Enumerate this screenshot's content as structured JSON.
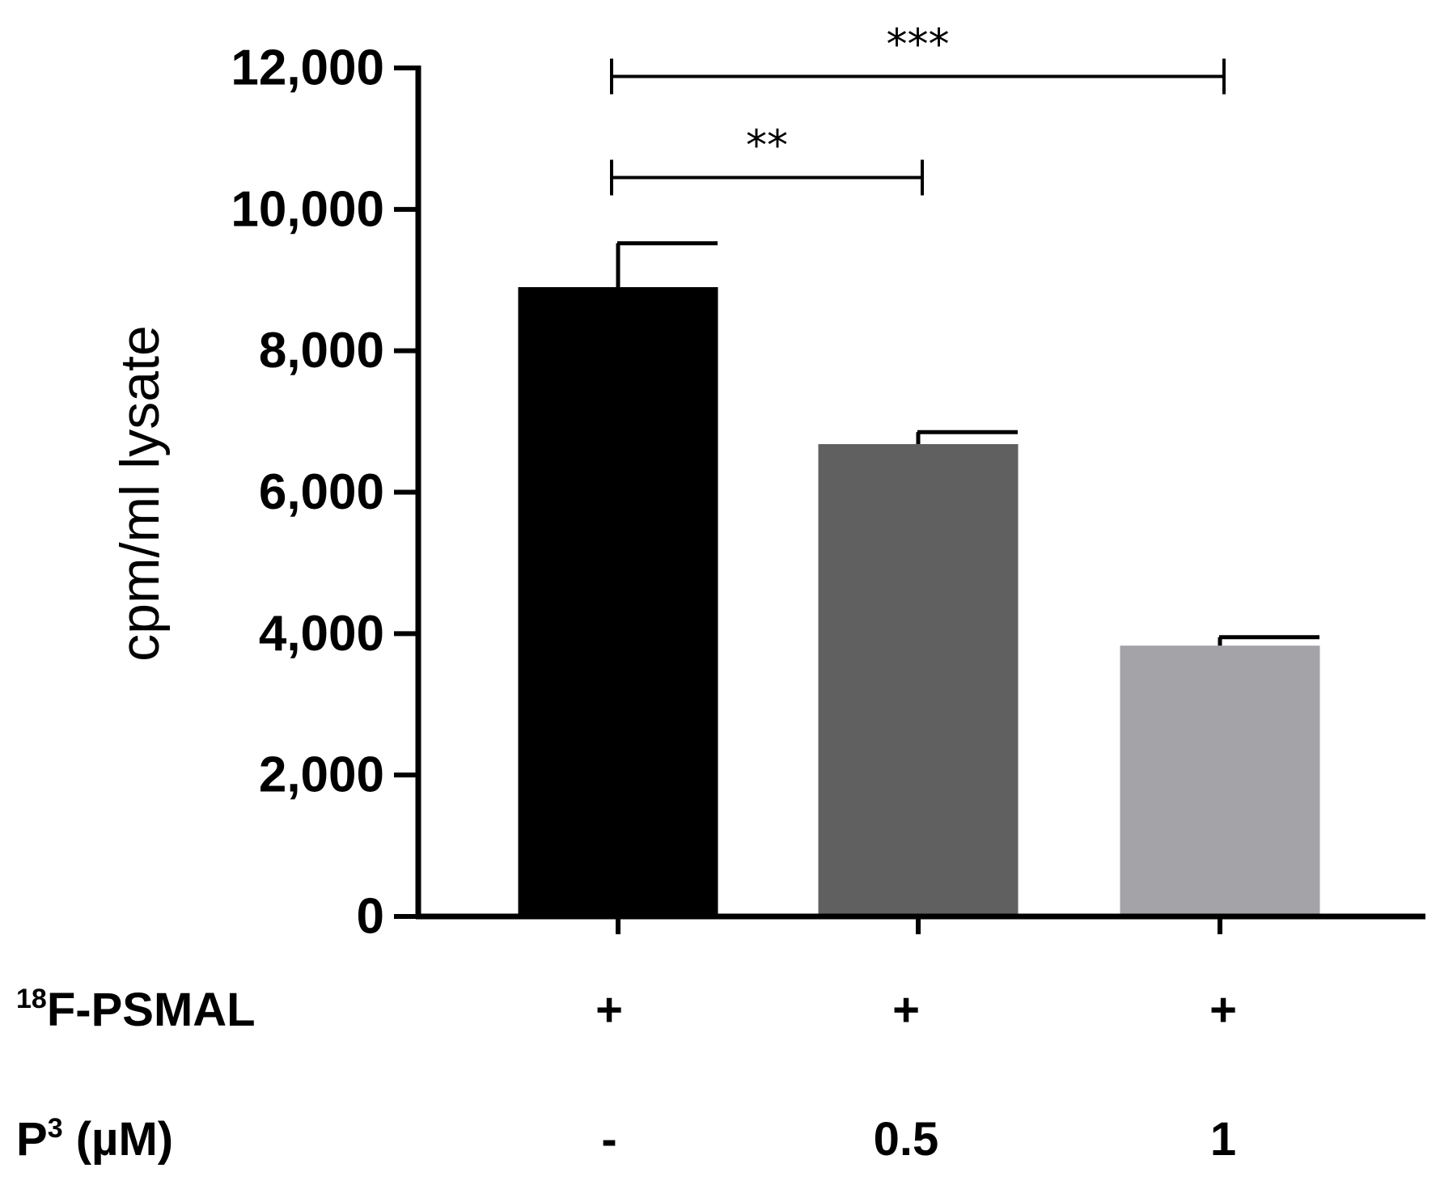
{
  "chart_data": {
    "type": "bar",
    "title": "",
    "xlabel": "",
    "ylabel": "cpm/ml lysate",
    "ylim": [
      0,
      12000
    ],
    "yticks": [
      "0",
      "2,000",
      "4,000",
      "6,000",
      "8,000",
      "10,000",
      "12,000"
    ],
    "ytick_values": [
      0,
      2000,
      4000,
      6000,
      8000,
      10000,
      12000
    ],
    "categories": [
      "-",
      "0.5",
      "1"
    ],
    "values": [
      8900,
      6680,
      3830
    ],
    "errors": [
      620,
      170,
      120
    ],
    "bar_colors": [
      "#000000",
      "#606060",
      "#a4a3a8"
    ],
    "condition_rows": [
      {
        "label_sup": "18",
        "label_main": "F-PSMAL",
        "values": [
          "+",
          "+",
          "+"
        ]
      },
      {
        "label_main": "P",
        "label_sup": "3",
        "label_suffix": " (µM)",
        "values": [
          "-",
          "0.5",
          "1"
        ]
      }
    ],
    "significance": [
      {
        "from": 0,
        "to": 1,
        "label": "**",
        "y_value": 10450
      },
      {
        "from": 0,
        "to": 2,
        "label": "***",
        "y_value": 11880
      }
    ]
  }
}
